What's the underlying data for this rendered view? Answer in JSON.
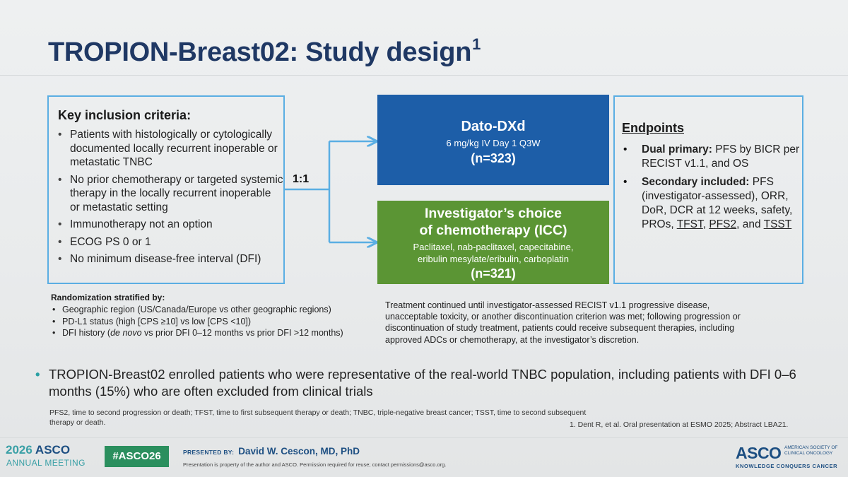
{
  "title": "TROPION-Breast02: Study design",
  "title_sup": "1",
  "inclusion": {
    "heading": "Key inclusion criteria:",
    "items": [
      "Patients with histologically or cytologically documented locally recurrent inoperable or metastatic TNBC",
      "No prior chemotherapy or targeted systemic therapy in the locally recurrent inoperable or metastatic setting",
      "Immunotherapy not an option",
      "ECOG PS 0 or 1",
      "No minimum disease-free interval (DFI)"
    ]
  },
  "randomization_ratio": "1:1",
  "arm1": {
    "name": "Dato-DXd",
    "dose": "6 mg/kg IV Day 1 Q3W",
    "n": "(n=323)"
  },
  "arm2": {
    "name_line1": "Investigator’s choice",
    "name_line2": "of chemotherapy (ICC)",
    "drugs_line1": "Paclitaxel, nab-paclitaxel, capecitabine,",
    "drugs_line2": "eribulin mesylate/eribulin, carboplatin",
    "n": "(n=321)"
  },
  "endpoints": {
    "heading": "Endpoints",
    "primary_label": "Dual primary:",
    "primary_text": "PFS by BICR per RECIST v1.1, and OS",
    "secondary_label": "Secondary included:",
    "secondary_text": "PFS (investigator-assessed), ORR, DoR, DCR at 12 weeks, safety, PROs,",
    "tfst": "TFST",
    "sep1": ",",
    "pfs2": "PFS2",
    "sep2": ", and",
    "tsst": "TSST"
  },
  "stratification": {
    "heading": "Randomization stratified by:",
    "item1": "Geographic region (US/Canada/Europe vs other geographic regions)",
    "item2": "PD-L1 status (high [CPS ≥10] vs low [CPS <10])",
    "item3_pre": "DFI history (",
    "item3_em": "de novo",
    "item3_post": " vs prior DFI 0–12 months vs prior DFI >12 months)"
  },
  "treatment_note": "Treatment continued until investigator-assessed RECIST v1.1 progressive disease, unacceptable toxicity, or another discontinuation criterion was met; following progression or discontinuation of study treatment, patients could receive subsequent therapies, including approved ADCs or chemotherapy, at the investigator’s discretion.",
  "key_message": "TROPION-Breast02 enrolled patients who were representative of the real-world TNBC population, including patients with DFI 0–6 months (15%) who are often excluded from clinical trials",
  "bullet_glyph": "•",
  "abbreviations": "PFS2, time to second progression or death; TFST, time to first subsequent therapy or death; TNBC, triple-negative breast cancer; TSST, time to second subsequent therapy or death.",
  "reference": "1. Dent R, et al. Oral presentation at ESMO 2025; Abstract LBA21.",
  "footer": {
    "meeting_year": "2026",
    "meeting_org": "ASCO",
    "meeting_sub": "ANNUAL MEETING",
    "hashtag": "#ASCO26",
    "presented_label": "PRESENTED BY:",
    "presenter": "David W. Cescon, MD, PhD",
    "permission": "Presentation is property of the author and ASCO. Permission required for reuse; contact permissions@asco.org.",
    "logo": "ASCO",
    "logo_sub": "AMERICAN SOCIETY OF CLINICAL ONCOLOGY",
    "logo_tagline": "KNOWLEDGE CONQUERS CANCER"
  },
  "colors": {
    "title": "#1f3864",
    "box_outline": "#5aaee3",
    "arm1": "#1d5ea8",
    "arm2": "#5b9534",
    "hashtag_bg": "#2b8f5e",
    "accent_teal": "#3aa0a6"
  }
}
